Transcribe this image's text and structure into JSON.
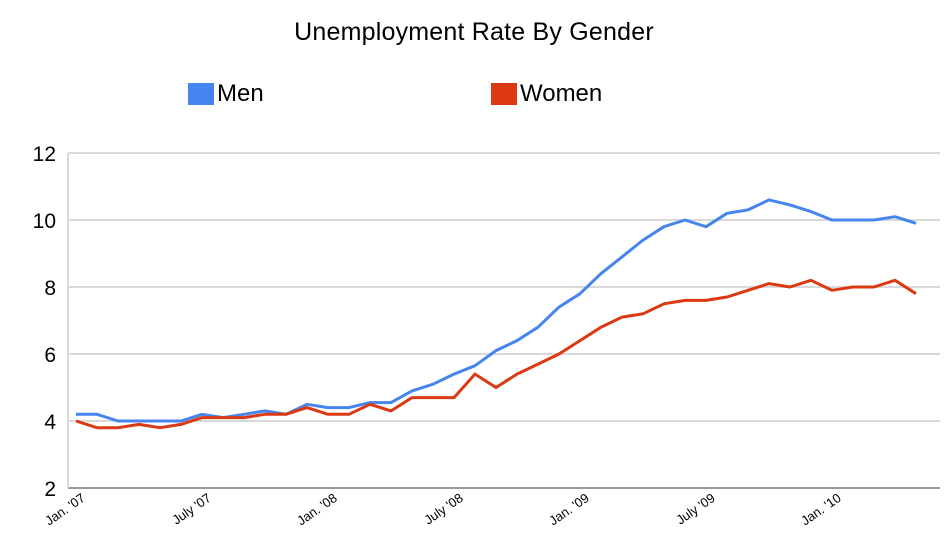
{
  "chart_data": {
    "type": "line",
    "title": "Unemployment Rate By Gender",
    "xlabel": "",
    "ylabel": "",
    "ylim": [
      2,
      12
    ],
    "yticks": [
      "2",
      "4",
      "6",
      "8",
      "10",
      "12"
    ],
    "grid": true,
    "legend_position": "top",
    "x_tick_labels": [
      {
        "label": "Jan. '07",
        "month_index": 0
      },
      {
        "label": "July '07",
        "month_index": 6
      },
      {
        "label": "Jan. '08",
        "month_index": 12
      },
      {
        "label": "July '08",
        "month_index": 18
      },
      {
        "label": "Jan. '09",
        "month_index": 24
      },
      {
        "label": "July '09",
        "month_index": 30
      },
      {
        "label": "Jan. '10",
        "month_index": 36
      }
    ],
    "x_range": [
      0,
      40
    ],
    "series": [
      {
        "name": "Men",
        "color": "#4684ee",
        "values": [
          4.2,
          4.2,
          4.0,
          4.0,
          4.0,
          4.0,
          4.2,
          4.1,
          4.2,
          4.3,
          4.2,
          4.5,
          4.4,
          4.4,
          4.55,
          4.55,
          4.9,
          5.1,
          5.4,
          5.65,
          6.1,
          6.4,
          6.8,
          7.4,
          7.8,
          8.4,
          8.9,
          9.4,
          9.8,
          10.0,
          9.8,
          10.2,
          10.3,
          10.6,
          10.45,
          10.25,
          10.0,
          10.0,
          10.0,
          10.1,
          9.9
        ]
      },
      {
        "name": "Women",
        "color": "#dc3912",
        "values": [
          4.0,
          3.8,
          3.8,
          3.9,
          3.8,
          3.9,
          4.1,
          4.1,
          4.1,
          4.2,
          4.2,
          4.4,
          4.2,
          4.2,
          4.5,
          4.3,
          4.7,
          4.7,
          4.7,
          5.4,
          5.0,
          5.4,
          5.7,
          6.0,
          6.4,
          6.8,
          7.1,
          7.2,
          7.5,
          7.6,
          7.6,
          7.7,
          7.9,
          8.1,
          8.0,
          8.2,
          7.9,
          8.0,
          8.0,
          8.2,
          7.8
        ]
      }
    ]
  }
}
